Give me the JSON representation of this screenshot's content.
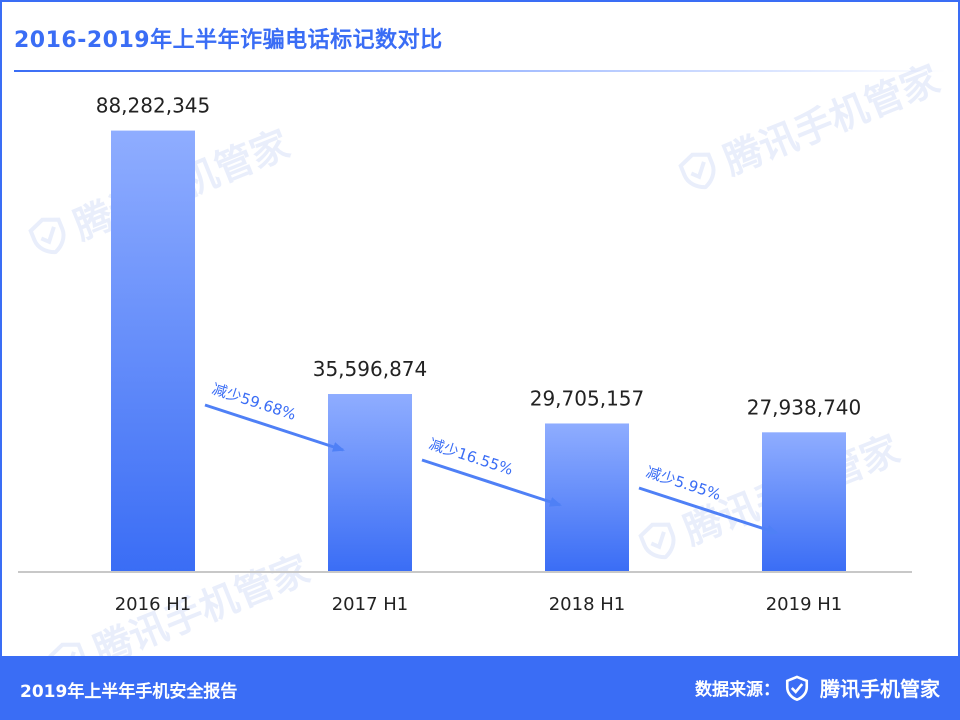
{
  "title": "2016-2019年上半年诈骗电话标记数对比",
  "watermark_text": "腾讯手机管家",
  "chart_data": {
    "type": "bar",
    "title": "2016-2019年上半年诈骗电话标记数对比",
    "categories": [
      "2016 H1",
      "2017 H1",
      "2018 H1",
      "2019 H1"
    ],
    "values": [
      88282345,
      35596874,
      29705157,
      27938740
    ],
    "value_labels": [
      "88,282,345",
      "35,596,874",
      "29,705,157",
      "27,938,740"
    ],
    "annotations": [
      "减少59.68%",
      "减少16.55%",
      "减少5.95%"
    ],
    "ylim": [
      0,
      100000000
    ],
    "grid": false,
    "colors": {
      "bar_top": "#8fadff",
      "bar_bottom": "#3a6df5",
      "arrow": "#4f80f6",
      "annotation": "#3a6df5"
    }
  },
  "footer": {
    "left_text": "2019年上半年手机安全报告",
    "source_label": "数据来源：",
    "brand": "腾讯手机管家"
  },
  "colors": {
    "accent": "#3a6df5"
  }
}
